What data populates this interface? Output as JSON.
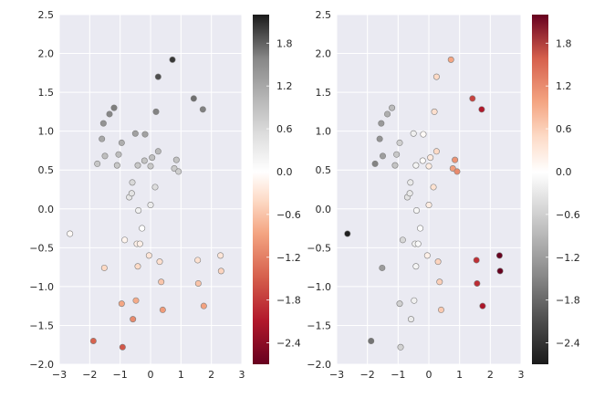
{
  "chart_data": [
    {
      "type": "scatter",
      "title": "",
      "xlabel": "",
      "ylabel": "",
      "xlim": [
        -3,
        3
      ],
      "ylim": [
        -2.0,
        2.5
      ],
      "x_ticks": [
        "−3",
        "−2",
        "−1",
        "0",
        "1",
        "2",
        "3"
      ],
      "y_ticks": [
        "−2.0",
        "−1.5",
        "−1.0",
        "−0.5",
        "0.0",
        "0.5",
        "1.0",
        "1.5",
        "2.0",
        "2.5"
      ],
      "grid": true,
      "colormap": "RdGy",
      "color_value": "y",
      "colorbar": {
        "range": [
          -2.7,
          2.2
        ],
        "ticks": [
          "−2.4",
          "−1.8",
          "−1.2",
          "−0.6",
          "0.0",
          "0.6",
          "1.2",
          "1.8"
        ]
      },
      "points": [
        {
          "x": -2.65,
          "y": -0.32
        },
        {
          "x": -1.88,
          "y": -1.7
        },
        {
          "x": -1.75,
          "y": 0.58
        },
        {
          "x": -1.6,
          "y": 0.9
        },
        {
          "x": -1.55,
          "y": 1.1
        },
        {
          "x": -1.5,
          "y": 0.68
        },
        {
          "x": -1.52,
          "y": -0.76
        },
        {
          "x": -1.35,
          "y": 1.22
        },
        {
          "x": -1.2,
          "y": 1.3
        },
        {
          "x": -1.1,
          "y": 0.56
        },
        {
          "x": -1.05,
          "y": 0.7
        },
        {
          "x": -0.95,
          "y": 0.85
        },
        {
          "x": -0.95,
          "y": -1.22
        },
        {
          "x": -0.92,
          "y": -1.78
        },
        {
          "x": -0.85,
          "y": -0.4
        },
        {
          "x": -0.7,
          "y": 0.15
        },
        {
          "x": -0.62,
          "y": 0.2
        },
        {
          "x": -0.6,
          "y": 0.34
        },
        {
          "x": -0.58,
          "y": -1.42
        },
        {
          "x": -0.5,
          "y": 0.97
        },
        {
          "x": -0.48,
          "y": -1.18
        },
        {
          "x": -0.45,
          "y": -0.45
        },
        {
          "x": -0.42,
          "y": 0.56
        },
        {
          "x": -0.42,
          "y": -0.74
        },
        {
          "x": -0.4,
          "y": -0.02
        },
        {
          "x": -0.35,
          "y": -0.45
        },
        {
          "x": -0.28,
          "y": -0.25
        },
        {
          "x": -0.2,
          "y": 0.62
        },
        {
          "x": -0.18,
          "y": 0.96
        },
        {
          "x": -0.05,
          "y": -0.6
        },
        {
          "x": 0.0,
          "y": 0.55
        },
        {
          "x": 0.0,
          "y": 0.05
        },
        {
          "x": 0.05,
          "y": 0.66
        },
        {
          "x": 0.15,
          "y": 0.28
        },
        {
          "x": 0.18,
          "y": 1.25
        },
        {
          "x": 0.25,
          "y": 0.74
        },
        {
          "x": 0.25,
          "y": 1.7
        },
        {
          "x": 0.3,
          "y": -0.68
        },
        {
          "x": 0.35,
          "y": -0.94
        },
        {
          "x": 0.4,
          "y": -1.3
        },
        {
          "x": 0.72,
          "y": 1.92
        },
        {
          "x": 0.78,
          "y": 0.52
        },
        {
          "x": 0.85,
          "y": 0.63
        },
        {
          "x": 0.92,
          "y": 0.48
        },
        {
          "x": 1.42,
          "y": 1.42
        },
        {
          "x": 1.55,
          "y": -0.66
        },
        {
          "x": 1.57,
          "y": -0.96
        },
        {
          "x": 1.72,
          "y": 1.28
        },
        {
          "x": 1.75,
          "y": -1.25
        },
        {
          "x": 2.3,
          "y": -0.6
        },
        {
          "x": 2.32,
          "y": -0.8
        }
      ]
    },
    {
      "type": "scatter",
      "title": "",
      "xlabel": "",
      "ylabel": "",
      "xlim": [
        -3,
        3
      ],
      "ylim": [
        -2.0,
        2.5
      ],
      "x_ticks": [
        "−3",
        "−2",
        "−1",
        "0",
        "1",
        "2",
        "3"
      ],
      "y_ticks": [
        "−2.0",
        "−1.5",
        "−1.0",
        "−0.5",
        "0.0",
        "0.5",
        "1.0",
        "1.5",
        "2.0",
        "2.5"
      ],
      "grid": true,
      "colormap": "RdGy_r",
      "color_value": "x",
      "colorbar": {
        "range": [
          -2.7,
          2.2
        ],
        "ticks": [
          "−2.4",
          "−1.8",
          "−1.2",
          "−0.6",
          "0.0",
          "0.6",
          "1.2",
          "1.8"
        ]
      },
      "points": "same as left panel"
    }
  ]
}
